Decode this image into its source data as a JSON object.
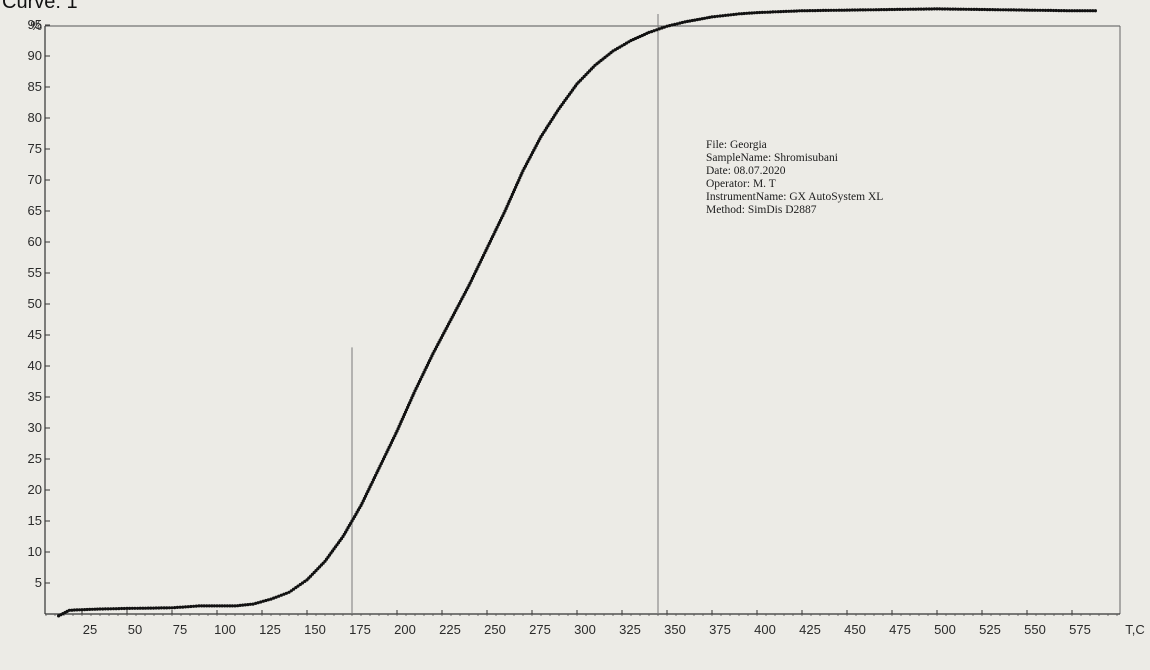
{
  "caption": "Curve: 1",
  "info": [
    {
      "label": "File",
      "value": "Georgia"
    },
    {
      "label": "SampleName",
      "value": "Shromisubani"
    },
    {
      "label": "Date",
      "value": "08.07.2020"
    },
    {
      "label": "Operator",
      "value": "M. T"
    },
    {
      "label": "InstrumentName",
      "value": "GX AutoSystem XL"
    },
    {
      "label": "Method",
      "value": "SimDis D2887"
    }
  ],
  "chart_data": {
    "type": "scatter",
    "title": "",
    "xlabel": "T,C",
    "ylabel": "%",
    "xlim": [
      0,
      600
    ],
    "ylim": [
      0,
      100
    ],
    "x_ticks": [
      25,
      50,
      75,
      100,
      125,
      150,
      175,
      200,
      225,
      250,
      275,
      300,
      325,
      350,
      375,
      400,
      425,
      450,
      475,
      500,
      525,
      550,
      575
    ],
    "y_ticks": [
      5,
      10,
      15,
      20,
      25,
      30,
      35,
      40,
      45,
      50,
      55,
      60,
      65,
      70,
      75,
      80,
      85,
      90,
      95
    ],
    "vertical_markers": [
      175,
      345
    ],
    "grid": false,
    "legend": "none",
    "series": [
      {
        "color": "#111111",
        "points": [
          [
            12,
            -0.3
          ],
          [
            18,
            0.6
          ],
          [
            25,
            0.7
          ],
          [
            35,
            0.8
          ],
          [
            50,
            0.9
          ],
          [
            75,
            1.0
          ],
          [
            90,
            1.3
          ],
          [
            100,
            1.3
          ],
          [
            110,
            1.3
          ],
          [
            120,
            1.6
          ],
          [
            130,
            2.4
          ],
          [
            140,
            3.5
          ],
          [
            150,
            5.5
          ],
          [
            160,
            8.5
          ],
          [
            170,
            12.5
          ],
          [
            180,
            17.5
          ],
          [
            190,
            23.5
          ],
          [
            200,
            29.5
          ],
          [
            210,
            36.0
          ],
          [
            220,
            42.0
          ],
          [
            230,
            47.5
          ],
          [
            240,
            53.0
          ],
          [
            250,
            59.0
          ],
          [
            260,
            65.0
          ],
          [
            270,
            71.5
          ],
          [
            280,
            77.0
          ],
          [
            290,
            81.5
          ],
          [
            300,
            85.5
          ],
          [
            310,
            88.5
          ],
          [
            320,
            90.8
          ],
          [
            330,
            92.5
          ],
          [
            340,
            93.8
          ],
          [
            350,
            94.8
          ],
          [
            360,
            95.5
          ],
          [
            375,
            96.3
          ],
          [
            390,
            96.8
          ],
          [
            400,
            97.0
          ],
          [
            425,
            97.3
          ],
          [
            450,
            97.4
          ],
          [
            475,
            97.5
          ],
          [
            500,
            97.6
          ],
          [
            525,
            97.5
          ],
          [
            550,
            97.4
          ],
          [
            575,
            97.3
          ],
          [
            588,
            97.3
          ]
        ]
      }
    ]
  }
}
